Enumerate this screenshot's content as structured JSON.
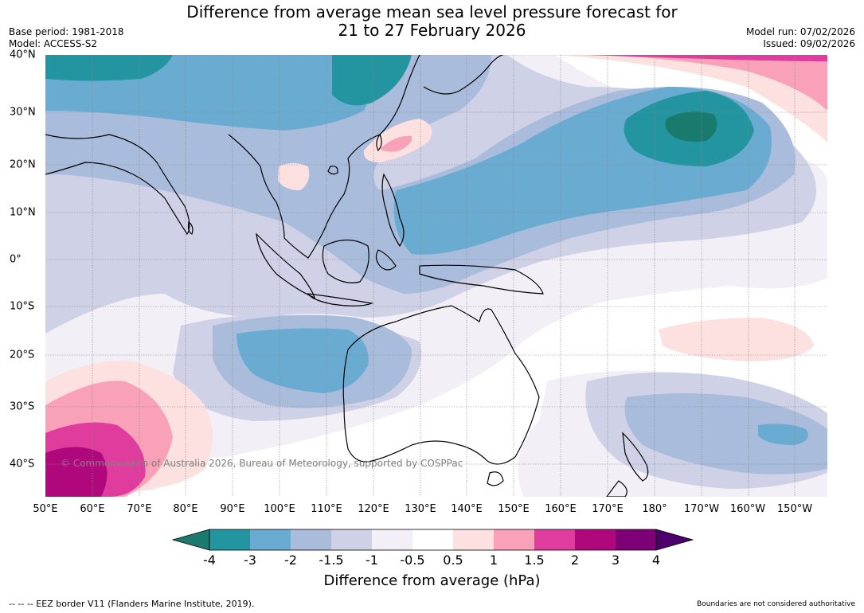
{
  "title_line1": "Difference from average mean sea level pressure forecast for",
  "title_line2": "21 to 27 February 2026",
  "base_period": "Base period: 1981-2018",
  "model": "Model: ACCESS-S2",
  "model_run": "Model run: 07/02/2026",
  "issued": "Issued: 09/02/2026",
  "copyright": "© Commonwealth of Australia 2026, Bureau of Meteorology, supported by COSPPac",
  "lon_labels": [
    "50°E",
    "60°E",
    "70°E",
    "80°E",
    "90°E",
    "100°E",
    "110°E",
    "120°E",
    "130°E",
    "140°E",
    "150°E",
    "160°E",
    "170°E",
    "180°",
    "170°W",
    "160°W",
    "150°W"
  ],
  "lat_labels": [
    "40°N",
    "30°N",
    "20°N",
    "10°N",
    "0°",
    "10°S",
    "20°S",
    "30°S",
    "40°S"
  ],
  "colorbar": {
    "title": "Difference from average (hPa)",
    "tick_labels": [
      "-4",
      "-3",
      "-2",
      "-1.5",
      "-1",
      "-0.5",
      "0.5",
      "1",
      "1.5",
      "2",
      "3",
      "4"
    ],
    "colors": [
      "#1b7a6e",
      "#2295a0",
      "#6aabd2",
      "#a9bcdc",
      "#cfd1e6",
      "#f3eff6",
      "#ffffff",
      "#fde0e0",
      "#f9a1b9",
      "#e03c9e",
      "#b0087c",
      "#7d0077",
      "#4d006b"
    ]
  },
  "footer_left": "--  --  -- EEZ border V11 (Flanders Marine Institute, 2019).",
  "footer_right": "Boundaries are not considered authoritative"
}
